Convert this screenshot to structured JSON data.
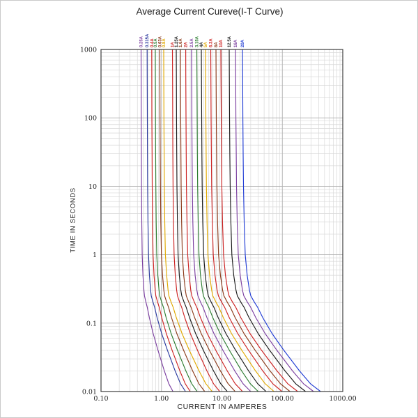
{
  "chart_data": {
    "type": "line",
    "title": "Average Current Cureve(I-T Curve)",
    "xlabel": "CURRENT IN AMPERES",
    "ylabel": "TIME IN SECONDS",
    "x_scale": "log",
    "y_scale": "log",
    "xlim": [
      0.1,
      1000
    ],
    "ylim": [
      0.01,
      1000
    ],
    "grid": true,
    "x_tick_labels": [
      {
        "value": 0.1,
        "label": "0.10"
      },
      {
        "value": 1,
        "label": "1.00"
      },
      {
        "value": 10,
        "label": "10.00"
      },
      {
        "value": 100,
        "label": "100.00"
      },
      {
        "value": 1000,
        "label": "1000.00"
      }
    ],
    "y_tick_labels": [
      {
        "value": 1000,
        "label": "1000"
      },
      {
        "value": 100,
        "label": "100"
      },
      {
        "value": 10,
        "label": "10"
      },
      {
        "value": 1,
        "label": "1"
      },
      {
        "value": 0.1,
        "label": "0.1"
      },
      {
        "value": 0.01,
        "label": "0.01"
      }
    ],
    "profile_note": "each curve runs vertically from 1000s then bends into a diagonal; fraction is position (in log-current space) between current_at_1000s and current_at_0p01s",
    "time_fraction_profile": [
      [
        1000,
        0.0
      ],
      [
        400,
        0.002
      ],
      [
        100,
        0.005
      ],
      [
        30,
        0.009
      ],
      [
        10,
        0.013
      ],
      [
        3,
        0.022
      ],
      [
        1,
        0.035
      ],
      [
        0.5,
        0.06
      ],
      [
        0.3,
        0.09
      ],
      [
        0.25,
        0.107
      ],
      [
        0.2,
        0.155
      ],
      [
        0.17,
        0.195
      ],
      [
        0.12,
        0.26
      ],
      [
        0.07,
        0.38
      ],
      [
        0.04,
        0.53
      ],
      [
        0.02,
        0.73
      ],
      [
        0.013,
        0.87
      ],
      [
        0.01,
        1.0
      ]
    ],
    "series": [
      {
        "name": "0.25A",
        "color": "#7B3FA0",
        "current_at_1000s": 0.46,
        "current_at_0p01s": 1.55
      },
      {
        "name": "0.315A",
        "color": "#2B3A9E",
        "current_at_1000s": 0.58,
        "current_at_0p01s": 2.5
      },
      {
        "name": "0.4A",
        "color": "#CC2222",
        "current_at_1000s": 0.69,
        "current_at_0p01s": 3.0
      },
      {
        "name": "0.5A",
        "color": "#2E7D32",
        "current_at_1000s": 0.79,
        "current_at_0p01s": 3.9
      },
      {
        "name": "0.63A",
        "color": "#8B3A1A",
        "current_at_1000s": 0.94,
        "current_at_0p01s": 5.2
      },
      {
        "name": "0.8A",
        "color": "#E0A800",
        "current_at_1000s": 1.09,
        "current_at_0p01s": 6.9
      },
      {
        "name": "1A",
        "color": "#CC2222",
        "current_at_1000s": 1.52,
        "current_at_0p01s": 9.2
      },
      {
        "name": "1.25A",
        "color": "#1A1A1A",
        "current_at_1000s": 1.76,
        "current_at_0p01s": 12.3
      },
      {
        "name": "1.6A",
        "color": "#8B3A1A",
        "current_at_1000s": 2.06,
        "current_at_0p01s": 16.6
      },
      {
        "name": "2A",
        "color": "#CC2222",
        "current_at_1000s": 2.52,
        "current_at_0p01s": 22
      },
      {
        "name": "2.5A",
        "color": "#7B3FA0",
        "current_at_1000s": 3.15,
        "current_at_0p01s": 30
      },
      {
        "name": "3.15A",
        "color": "#2E7D32",
        "current_at_1000s": 3.85,
        "current_at_0p01s": 40
      },
      {
        "name": "4A",
        "color": "#1A1A1A",
        "current_at_1000s": 4.57,
        "current_at_0p01s": 54
      },
      {
        "name": "5A",
        "color": "#E0A800",
        "current_at_1000s": 5.36,
        "current_at_0p01s": 73
      },
      {
        "name": "6.3A",
        "color": "#CC2222",
        "current_at_1000s": 6.54,
        "current_at_0p01s": 99
      },
      {
        "name": "8A",
        "color": "#8B3A1A",
        "current_at_1000s": 7.98,
        "current_at_0p01s": 134
      },
      {
        "name": "10A",
        "color": "#CC2222",
        "current_at_1000s": 9.61,
        "current_at_0p01s": 180
      },
      {
        "name": "12.5A",
        "color": "#1A1A1A",
        "current_at_1000s": 13.2,
        "current_at_0p01s": 243
      },
      {
        "name": "16A",
        "color": "#7B3FA0",
        "current_at_1000s": 16.8,
        "current_at_0p01s": 330
      },
      {
        "name": "20A",
        "color": "#1F3BD4",
        "current_at_1000s": 21.9,
        "current_at_0p01s": 430
      }
    ],
    "colors": {
      "grid_minor": "#d8d8d8",
      "grid_major": "#b2b2b2",
      "plot_border": "#3c3c3c",
      "text": "#1a1a1a"
    }
  }
}
